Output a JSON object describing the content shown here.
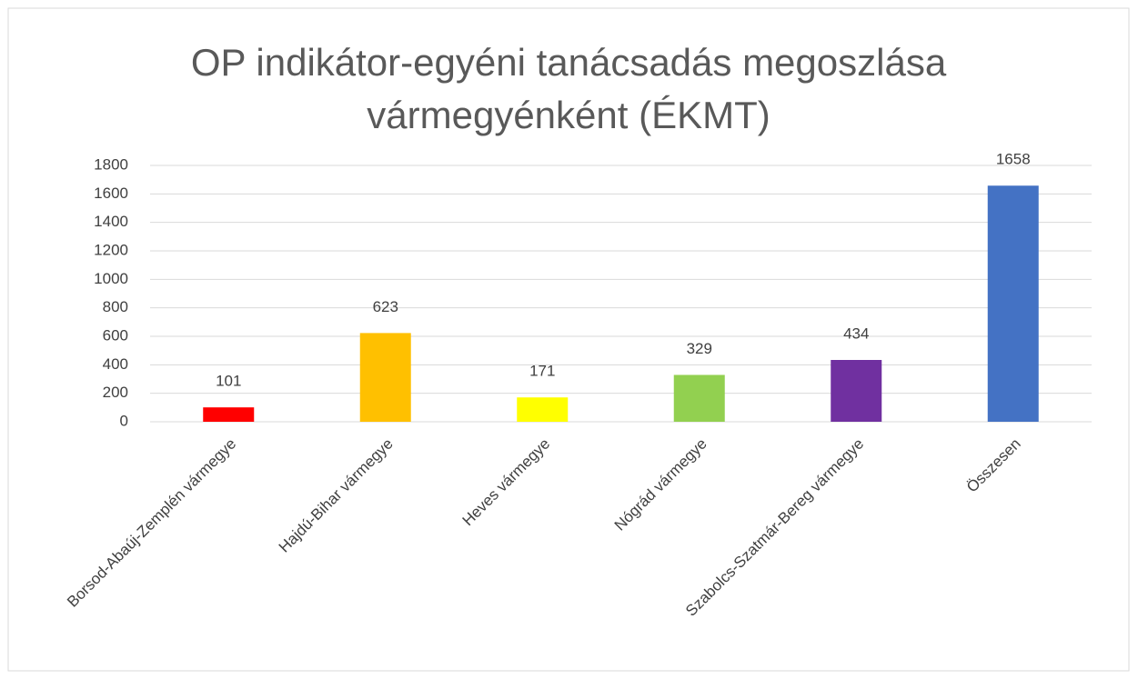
{
  "chart_data": {
    "type": "bar",
    "title": "OP indikátor-egyéni tanácsadás megoszlása vármegyénként (ÉKMT)",
    "categories": [
      "Borsod-Abaúj-Zemplén vármegye",
      "Hajdú-Bihar vármegye",
      "Heves vármegye",
      "Nógrád vármegye",
      "Szabolcs-Szatmár-Bereg vármegye",
      "Összesen"
    ],
    "values": [
      101,
      623,
      171,
      329,
      434,
      1658
    ],
    "colors": [
      "#ff0000",
      "#ffc000",
      "#ffff00",
      "#92d050",
      "#7030a0",
      "#4472c4"
    ],
    "ylim": [
      0,
      1800
    ],
    "yticks": [
      0,
      200,
      400,
      600,
      800,
      1000,
      1200,
      1400,
      1600,
      1800
    ],
    "grid": true
  }
}
